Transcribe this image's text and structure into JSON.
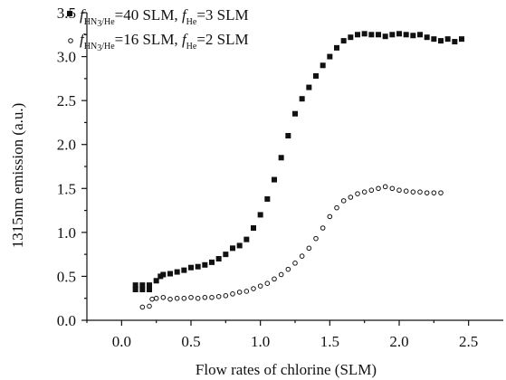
{
  "chart_data": {
    "type": "scatter",
    "xlabel": "Flow rates of chlorine (SLM)",
    "ylabel": "1315nm emission (a.u.)",
    "xlim": [
      -0.25,
      2.75
    ],
    "ylim": [
      0.0,
      3.5
    ],
    "x_ticks": [
      "0.0",
      "0.5",
      "1.0",
      "1.5",
      "2.0",
      "2.5"
    ],
    "y_ticks": [
      "0.0",
      "0.5",
      "1.0",
      "1.5",
      "2.0",
      "2.5",
      "3.0",
      "3.5"
    ],
    "grid": false,
    "legend_position": "top-left",
    "series": [
      {
        "legend": {
          "f1": "f",
          "s1": "HN",
          "s1b": "3",
          "s1c": "/He",
          "t1": "=40 SLM, ",
          "f2": "f",
          "s2": "He",
          "t2": "=3  SLM"
        },
        "marker": "filled-square",
        "color": "#111111",
        "points": [
          [
            0.1,
            0.35
          ],
          [
            0.1,
            0.4
          ],
          [
            0.15,
            0.35
          ],
          [
            0.15,
            0.4
          ],
          [
            0.2,
            0.35
          ],
          [
            0.2,
            0.4
          ],
          [
            0.25,
            0.45
          ],
          [
            0.28,
            0.5
          ],
          [
            0.3,
            0.52
          ],
          [
            0.35,
            0.53
          ],
          [
            0.4,
            0.55
          ],
          [
            0.45,
            0.57
          ],
          [
            0.5,
            0.6
          ],
          [
            0.55,
            0.61
          ],
          [
            0.6,
            0.63
          ],
          [
            0.65,
            0.66
          ],
          [
            0.7,
            0.7
          ],
          [
            0.75,
            0.75
          ],
          [
            0.8,
            0.82
          ],
          [
            0.85,
            0.85
          ],
          [
            0.9,
            0.92
          ],
          [
            0.95,
            1.05
          ],
          [
            1.0,
            1.2
          ],
          [
            1.05,
            1.38
          ],
          [
            1.1,
            1.6
          ],
          [
            1.15,
            1.85
          ],
          [
            1.2,
            2.1
          ],
          [
            1.25,
            2.35
          ],
          [
            1.3,
            2.52
          ],
          [
            1.35,
            2.65
          ],
          [
            1.4,
            2.78
          ],
          [
            1.45,
            2.9
          ],
          [
            1.5,
            3.0
          ],
          [
            1.55,
            3.1
          ],
          [
            1.6,
            3.18
          ],
          [
            1.65,
            3.22
          ],
          [
            1.7,
            3.25
          ],
          [
            1.75,
            3.26
          ],
          [
            1.8,
            3.25
          ],
          [
            1.85,
            3.25
          ],
          [
            1.9,
            3.23
          ],
          [
            1.95,
            3.25
          ],
          [
            2.0,
            3.26
          ],
          [
            2.05,
            3.25
          ],
          [
            2.1,
            3.24
          ],
          [
            2.15,
            3.25
          ],
          [
            2.2,
            3.22
          ],
          [
            2.25,
            3.2
          ],
          [
            2.3,
            3.18
          ],
          [
            2.35,
            3.2
          ],
          [
            2.4,
            3.17
          ],
          [
            2.45,
            3.2
          ]
        ]
      },
      {
        "legend": {
          "f1": "f",
          "s1": "HN",
          "s1b": "3",
          "s1c": "/He",
          "t1": "=16 SLM, ",
          "f2": "f",
          "s2": "He",
          "t2": "=2 SLM"
        },
        "marker": "open-circle",
        "color": "#111111",
        "points": [
          [
            0.15,
            0.15
          ],
          [
            0.2,
            0.16
          ],
          [
            0.22,
            0.24
          ],
          [
            0.25,
            0.25
          ],
          [
            0.3,
            0.26
          ],
          [
            0.35,
            0.24
          ],
          [
            0.4,
            0.25
          ],
          [
            0.45,
            0.25
          ],
          [
            0.5,
            0.26
          ],
          [
            0.55,
            0.25
          ],
          [
            0.6,
            0.26
          ],
          [
            0.65,
            0.26
          ],
          [
            0.7,
            0.27
          ],
          [
            0.75,
            0.28
          ],
          [
            0.8,
            0.3
          ],
          [
            0.85,
            0.32
          ],
          [
            0.9,
            0.33
          ],
          [
            0.95,
            0.36
          ],
          [
            1.0,
            0.39
          ],
          [
            1.05,
            0.42
          ],
          [
            1.1,
            0.47
          ],
          [
            1.15,
            0.52
          ],
          [
            1.2,
            0.58
          ],
          [
            1.25,
            0.65
          ],
          [
            1.3,
            0.73
          ],
          [
            1.35,
            0.82
          ],
          [
            1.4,
            0.93
          ],
          [
            1.45,
            1.05
          ],
          [
            1.5,
            1.18
          ],
          [
            1.55,
            1.28
          ],
          [
            1.6,
            1.36
          ],
          [
            1.65,
            1.4
          ],
          [
            1.7,
            1.44
          ],
          [
            1.75,
            1.46
          ],
          [
            1.8,
            1.48
          ],
          [
            1.85,
            1.5
          ],
          [
            1.9,
            1.52
          ],
          [
            1.95,
            1.5
          ],
          [
            2.0,
            1.48
          ],
          [
            2.05,
            1.47
          ],
          [
            2.1,
            1.46
          ],
          [
            2.15,
            1.46
          ],
          [
            2.2,
            1.45
          ],
          [
            2.25,
            1.45
          ],
          [
            2.3,
            1.45
          ]
        ]
      }
    ]
  }
}
